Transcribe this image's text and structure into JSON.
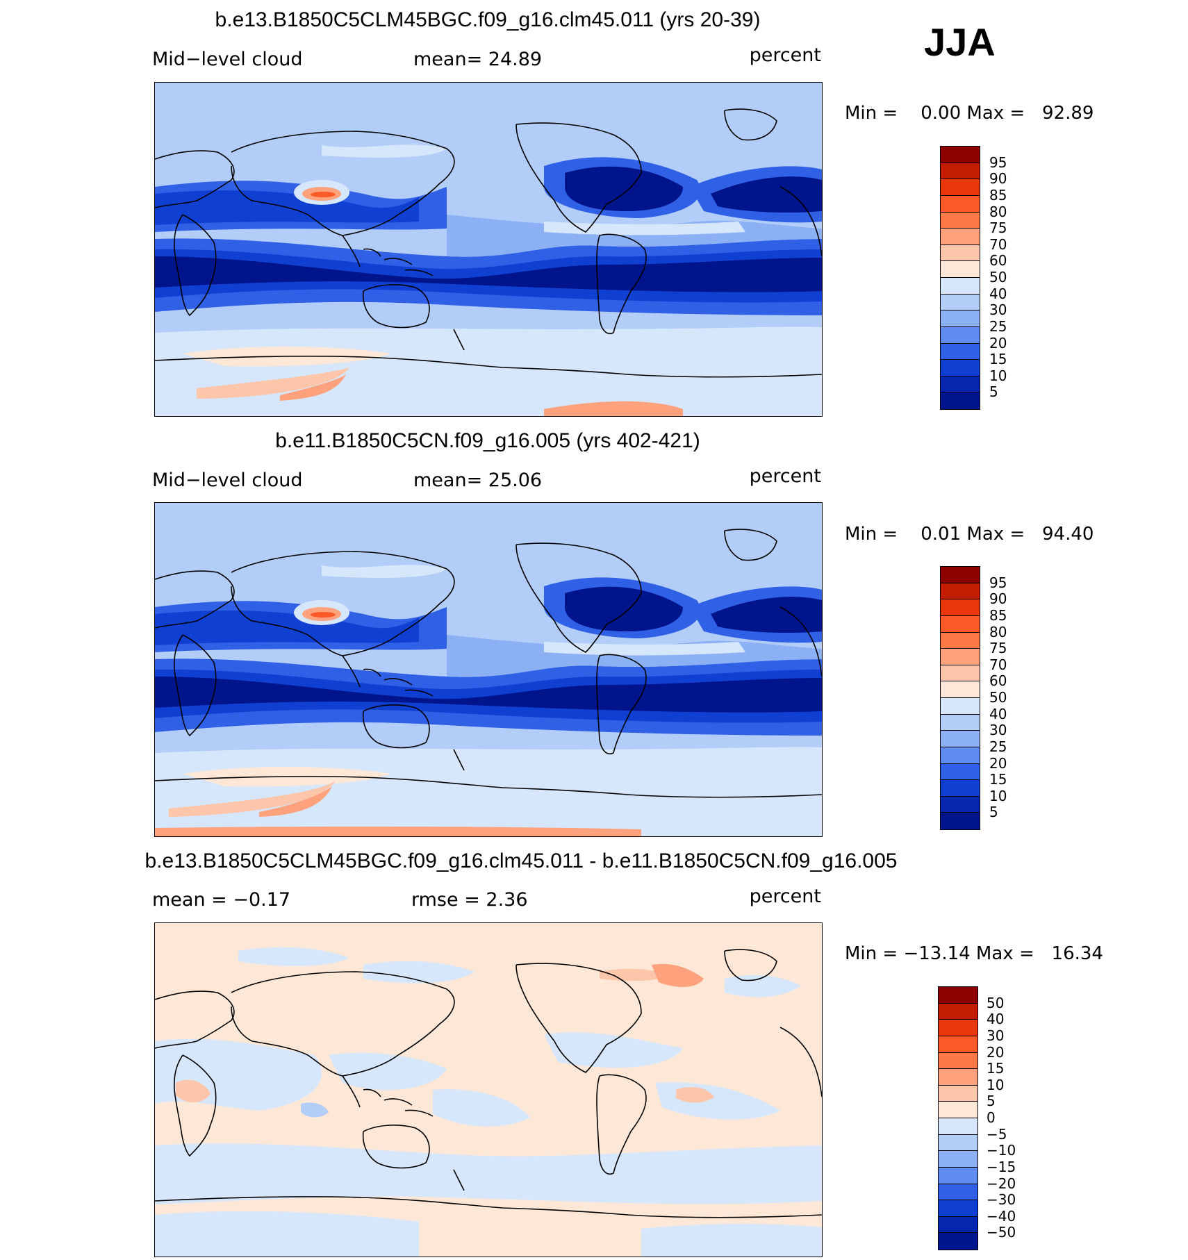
{
  "season": "JJA",
  "panels": [
    {
      "title": "b.e13.B1850C5CLM45BGC.f09_g16.clm45.011 (yrs 20-39)",
      "left_label": "Mid−level cloud",
      "center_label": "mean=   24.89",
      "right_label": "percent",
      "minmax": "Min =    0.00 Max =   92.89",
      "field": "cloud"
    },
    {
      "title": "b.e11.B1850C5CN.f09_g16.005 (yrs 402-421)",
      "left_label": "Mid−level cloud",
      "center_label": "mean=   25.06",
      "right_label": "percent",
      "minmax": "Min =    0.01 Max =   94.40",
      "field": "cloud"
    },
    {
      "title": "b.e13.B1850C5CLM45BGC.f09_g16.clm45.011 - b.e11.B1850C5CN.f09_g16.005",
      "left_label": "mean =   −0.17",
      "center_label": "rmse =     2.36",
      "right_label": "percent",
      "minmax": "Min = −13.14 Max =   16.34",
      "field": "diff"
    }
  ],
  "colorbars": {
    "cloud": {
      "labels": [
        "95",
        "90",
        "85",
        "80",
        "75",
        "70",
        "60",
        "50",
        "40",
        "30",
        "25",
        "20",
        "15",
        "10",
        "5"
      ],
      "colors": [
        "#8c0000",
        "#c41c00",
        "#e8380c",
        "#fb5a28",
        "#fd7a46",
        "#fda27c",
        "#fdc6aa",
        "#fde8d8",
        "#d6e6fb",
        "#b2cdf8",
        "#8bb0f4",
        "#5f8cf0",
        "#3060e6",
        "#1040d2",
        "#0626ae",
        "#00148c"
      ]
    },
    "diff": {
      "labels": [
        "50",
        "40",
        "30",
        "20",
        "15",
        "10",
        "5",
        "0",
        "−5",
        "−10",
        "−15",
        "−20",
        "−30",
        "−40",
        "−50"
      ],
      "colors": [
        "#8c0000",
        "#c41c00",
        "#e8380c",
        "#fb5a28",
        "#fd7a46",
        "#fda27c",
        "#fdc6aa",
        "#fde8d8",
        "#d6e6fb",
        "#b2cdf8",
        "#8bb0f4",
        "#5f8cf0",
        "#3060e6",
        "#1040d2",
        "#0626ae",
        "#00148c"
      ]
    }
  }
}
